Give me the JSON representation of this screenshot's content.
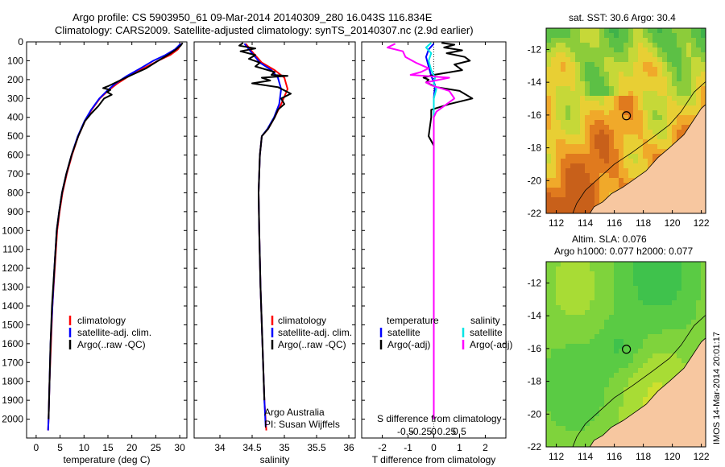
{
  "header": {
    "line1": "Argo profile: CS 5903950_61 09-Mar-2014 20140309_280 16.043S 116.834E",
    "line2": "Climatology: CARS2009. Satellite-adjusted climatology: synTS_20140307.nc (2.9d earlier)"
  },
  "side_label": "IMOS 14-Mar-2014 20:01:17",
  "colors": {
    "climatology": "#ff0000",
    "satellite": "#0000ff",
    "argo": "#000000",
    "sal_satellite": "#00e5e5",
    "sal_argo": "#ff00ff",
    "land": "#f7c7a0"
  },
  "chart_data": [
    {
      "type": "line",
      "id": "temperature",
      "xlabel": "temperature (deg C)",
      "ylim": [
        2100,
        0
      ],
      "xlim": [
        -2,
        31.5
      ],
      "xticks": [
        0,
        5,
        10,
        15,
        20,
        25,
        30
      ],
      "yticks": [
        0,
        100,
        200,
        300,
        400,
        500,
        600,
        700,
        800,
        900,
        1000,
        1100,
        1200,
        1300,
        1400,
        1500,
        1600,
        1700,
        1800,
        1900,
        2000
      ],
      "legend": [
        "climatology",
        "satellite-adj. clim.",
        "Argo(..raw -QC)"
      ],
      "series": [
        {
          "name": "climatology",
          "color": "#ff0000",
          "points": [
            [
              30.4,
              10
            ],
            [
              29.6,
              40
            ],
            [
              28.0,
              70
            ],
            [
              25.5,
              100
            ],
            [
              22.5,
              140
            ],
            [
              19.5,
              180
            ],
            [
              17.0,
              220
            ],
            [
              15.0,
              260
            ],
            [
              13.3,
              300
            ],
            [
              11.6,
              360
            ],
            [
              10.2,
              420
            ],
            [
              8.8,
              500
            ],
            [
              7.5,
              600
            ],
            [
              6.4,
              700
            ],
            [
              5.5,
              800
            ],
            [
              4.9,
              900
            ],
            [
              4.4,
              1000
            ],
            [
              3.9,
              1200
            ],
            [
              3.4,
              1400
            ],
            [
              3.1,
              1600
            ],
            [
              2.8,
              1800
            ],
            [
              2.6,
              2000
            ],
            [
              2.5,
              2060
            ]
          ]
        },
        {
          "name": "satellite-adj. clim.",
          "color": "#0000ff",
          "points": [
            [
              30.2,
              10
            ],
            [
              29.0,
              40
            ],
            [
              27.0,
              70
            ],
            [
              24.5,
              100
            ],
            [
              21.8,
              140
            ],
            [
              19.0,
              180
            ],
            [
              16.6,
              220
            ],
            [
              14.8,
              260
            ],
            [
              13.2,
              300
            ],
            [
              11.5,
              360
            ],
            [
              10.1,
              420
            ],
            [
              8.7,
              500
            ],
            [
              7.4,
              600
            ],
            [
              6.3,
              700
            ],
            [
              5.4,
              800
            ],
            [
              4.8,
              900
            ],
            [
              4.3,
              1000
            ],
            [
              3.8,
              1200
            ],
            [
              3.4,
              1400
            ],
            [
              3.0,
              1600
            ],
            [
              2.8,
              1800
            ],
            [
              2.6,
              2000
            ],
            [
              2.5,
              2060
            ]
          ]
        },
        {
          "name": "Argo(..raw -QC)",
          "color": "#000000",
          "points": [
            [
              30.6,
              5
            ],
            [
              30.2,
              20
            ],
            [
              29.0,
              45
            ],
            [
              27.5,
              70
            ],
            [
              25.5,
              100
            ],
            [
              23.0,
              140
            ],
            [
              20.0,
              175
            ],
            [
              17.5,
              205
            ],
            [
              15.0,
              235
            ],
            [
              14.0,
              245
            ],
            [
              15.5,
              255
            ],
            [
              14.8,
              265
            ],
            [
              15.8,
              280
            ],
            [
              14.2,
              300
            ],
            [
              13.0,
              340
            ],
            [
              11.5,
              380
            ],
            [
              10.2,
              420
            ],
            [
              8.8,
              500
            ],
            [
              7.4,
              600
            ],
            [
              6.3,
              700
            ],
            [
              5.4,
              800
            ],
            [
              4.8,
              900
            ],
            [
              4.3,
              1000
            ],
            [
              3.8,
              1200
            ],
            [
              3.3,
              1400
            ],
            [
              3.0,
              1600
            ],
            [
              2.8,
              1800
            ],
            [
              2.6,
              2000
            ]
          ]
        }
      ]
    },
    {
      "type": "line",
      "id": "salinity",
      "xlabel": "salinity",
      "ylim": [
        2100,
        0
      ],
      "xlim": [
        33.6,
        36.1
      ],
      "xticks": [
        34,
        34.5,
        35,
        35.5,
        36
      ],
      "legend": [
        "climatology",
        "satellite-adj. clim.",
        "Argo(..raw -QC)"
      ],
      "annotation": [
        "Argo Australia",
        "PI: Susan Wijffels"
      ],
      "series": [
        {
          "name": "climatology",
          "color": "#ff0000",
          "points": [
            [
              34.4,
              10
            ],
            [
              34.52,
              60
            ],
            [
              34.65,
              110
            ],
            [
              34.85,
              150
            ],
            [
              35.0,
              190
            ],
            [
              35.05,
              250
            ],
            [
              34.95,
              330
            ],
            [
              34.85,
              400
            ],
            [
              34.75,
              460
            ],
            [
              34.65,
              500
            ],
            [
              34.62,
              600
            ],
            [
              34.6,
              800
            ],
            [
              34.61,
              1000
            ],
            [
              34.63,
              1300
            ],
            [
              34.66,
              1600
            ],
            [
              34.69,
              1900
            ],
            [
              34.72,
              2060
            ]
          ]
        },
        {
          "name": "satellite-adj. clim.",
          "color": "#0000ff",
          "points": [
            [
              34.38,
              10
            ],
            [
              34.5,
              60
            ],
            [
              34.62,
              110
            ],
            [
              34.8,
              150
            ],
            [
              34.9,
              190
            ],
            [
              34.95,
              250
            ],
            [
              34.92,
              330
            ],
            [
              34.84,
              400
            ],
            [
              34.74,
              460
            ],
            [
              34.65,
              500
            ],
            [
              34.62,
              600
            ],
            [
              34.6,
              800
            ],
            [
              34.61,
              1000
            ],
            [
              34.63,
              1300
            ],
            [
              34.66,
              1600
            ],
            [
              34.69,
              1900
            ],
            [
              34.71,
              2040
            ]
          ]
        },
        {
          "name": "Argo(..raw -QC)",
          "color": "#000000",
          "points": [
            [
              34.36,
              5
            ],
            [
              34.3,
              20
            ],
            [
              34.55,
              35
            ],
            [
              34.32,
              50
            ],
            [
              34.55,
              70
            ],
            [
              34.45,
              90
            ],
            [
              34.62,
              110
            ],
            [
              34.55,
              130
            ],
            [
              34.85,
              160
            ],
            [
              34.8,
              175
            ],
            [
              35.05,
              180
            ],
            [
              34.65,
              190
            ],
            [
              34.78,
              205
            ],
            [
              34.5,
              220
            ],
            [
              34.9,
              240
            ],
            [
              35.1,
              275
            ],
            [
              34.95,
              300
            ],
            [
              35.0,
              330
            ],
            [
              34.9,
              360
            ],
            [
              34.85,
              400
            ],
            [
              34.75,
              460
            ],
            [
              34.65,
              500
            ],
            [
              34.62,
              600
            ],
            [
              34.6,
              800
            ],
            [
              34.61,
              1000
            ],
            [
              34.63,
              1300
            ],
            [
              34.66,
              1600
            ],
            [
              34.69,
              1900
            ]
          ]
        }
      ]
    },
    {
      "type": "line",
      "id": "differences",
      "xlabel": "T difference from climatology",
      "xlabel_top": "S difference from climatology",
      "ylim": [
        2100,
        0
      ],
      "xlim": [
        -2.8,
        2.8
      ],
      "xticks": [
        -2,
        -1,
        0,
        1,
        2
      ],
      "xticks_s": [
        "-0.5",
        "-0.25",
        "0",
        "0.25",
        "0.5"
      ],
      "xticks_s_pos": [
        -2,
        -1,
        0,
        1,
        2
      ],
      "legend_left_title": "temperature",
      "legend_right_title": "salinity",
      "legend_left": [
        "satellite",
        "Argo(-adj)"
      ],
      "legend_right": [
        "satellite",
        "Argo(-adj)"
      ],
      "series": [
        {
          "name": "T satellite",
          "color": "#0000ff",
          "points": [
            [
              0.0,
              10
            ],
            [
              -0.2,
              40
            ],
            [
              -0.3,
              80
            ],
            [
              -0.2,
              130
            ],
            [
              -0.1,
              180
            ],
            [
              0.05,
              230
            ],
            [
              0.0,
              300
            ],
            [
              0.0,
              500
            ],
            [
              0.0,
              1000
            ],
            [
              0.0,
              2000
            ]
          ]
        },
        {
          "name": "T Argo(-adj)",
          "color": "#000000",
          "points": [
            [
              0.3,
              5
            ],
            [
              0.8,
              15
            ],
            [
              0.4,
              30
            ],
            [
              1.1,
              45
            ],
            [
              0.5,
              60
            ],
            [
              1.2,
              80
            ],
            [
              1.4,
              100
            ],
            [
              0.8,
              120
            ],
            [
              1.1,
              150
            ],
            [
              0.0,
              175
            ],
            [
              -0.4,
              190
            ],
            [
              -0.2,
              200
            ],
            [
              -0.3,
              215
            ],
            [
              0.1,
              240
            ],
            [
              1.0,
              260
            ],
            [
              1.5,
              300
            ],
            [
              0.6,
              330
            ],
            [
              -0.1,
              360
            ],
            [
              -0.1,
              400
            ],
            [
              -0.2,
              500
            ],
            [
              0.0,
              550
            ],
            [
              0.0,
              1000
            ],
            [
              0.0,
              2000
            ]
          ]
        },
        {
          "name": "S satellite",
          "color": "#00e5e5",
          "points": [
            [
              -0.1,
              5
            ],
            [
              -0.3,
              30
            ],
            [
              -0.1,
              60
            ],
            [
              -0.2,
              100
            ],
            [
              -0.1,
              150
            ],
            [
              0.05,
              190
            ],
            [
              0.0,
              220
            ],
            [
              0.1,
              250
            ],
            [
              0.0,
              300
            ],
            [
              0.0,
              500
            ],
            [
              0.0,
              1000
            ],
            [
              0.0,
              2000
            ]
          ]
        },
        {
          "name": "S Argo(-adj)",
          "color": "#ff00ff",
          "points": [
            [
              -1.5,
              10
            ],
            [
              -1.8,
              30
            ],
            [
              -1.2,
              50
            ],
            [
              -1.1,
              80
            ],
            [
              -0.7,
              110
            ],
            [
              -0.2,
              140
            ],
            [
              -0.5,
              160
            ],
            [
              -0.9,
              175
            ],
            [
              0.6,
              190
            ],
            [
              -0.3,
              215
            ],
            [
              -0.1,
              230
            ],
            [
              0.6,
              260
            ],
            [
              0.8,
              300
            ],
            [
              0.4,
              340
            ],
            [
              0.1,
              370
            ],
            [
              0.0,
              400
            ],
            [
              0.0,
              500
            ],
            [
              0.0,
              1000
            ],
            [
              0.0,
              2000
            ]
          ]
        }
      ]
    },
    {
      "type": "heatmap",
      "id": "sst_map",
      "title": "sat. SST: 30.6 Argo: 30.4",
      "xticks": [
        112,
        114,
        116,
        118,
        120,
        122
      ],
      "yticks": [
        -12,
        -14,
        -16,
        -18,
        -20,
        -22
      ],
      "xlim": [
        111.3,
        122.3
      ],
      "ylim": [
        -22,
        -10.7
      ],
      "argo_position": [
        116.834,
        -16.043
      ]
    },
    {
      "type": "heatmap",
      "id": "sla_map",
      "title_line1": "Altim. SLA: 0.076",
      "title_line2": "Argo h1000: 0.077 h2000: 0.077",
      "xticks": [
        112,
        114,
        116,
        118,
        120,
        122
      ],
      "yticks": [
        -12,
        -14,
        -16,
        -18,
        -20,
        -22
      ],
      "xlim": [
        111.3,
        122.3
      ],
      "ylim": [
        -22,
        -10.7
      ],
      "argo_position": [
        116.834,
        -16.043
      ]
    }
  ]
}
